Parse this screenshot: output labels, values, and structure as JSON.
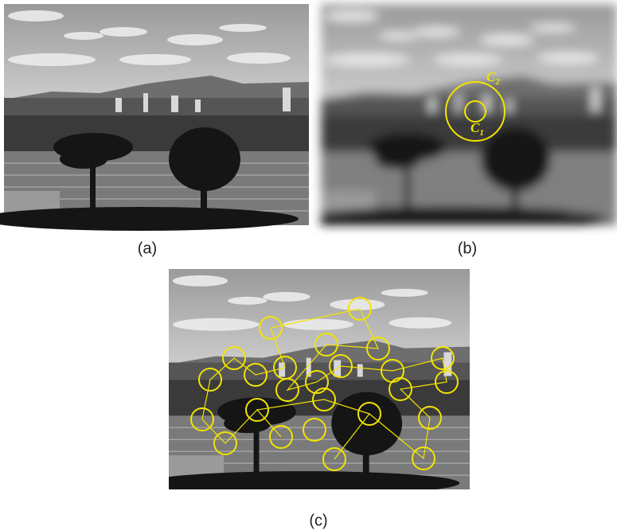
{
  "panels": [
    {
      "label": "(a)"
    },
    {
      "label": "(b)",
      "annotations": [
        {
          "letter": "C",
          "sub": "2"
        },
        {
          "letter": "C",
          "sub": "1"
        }
      ]
    },
    {
      "label": "(c)"
    }
  ]
}
